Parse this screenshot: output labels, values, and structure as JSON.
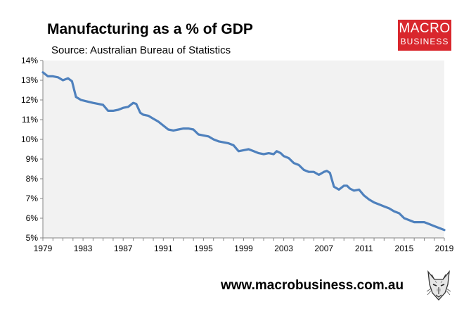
{
  "header": {
    "title": "Manufacturing as a % of GDP",
    "subtitle": "Source: Australian Bureau of Statistics"
  },
  "logo": {
    "line1": "MACRO",
    "line2": "BUSINESS"
  },
  "footer": {
    "url": "www.macrobusiness.com.au",
    "mascot_icon": "fox-mascot-icon"
  },
  "colors": {
    "line": "#4f81bd",
    "plot_bg": "#f2f2f2",
    "logo_bg": "#d9272d"
  },
  "chart_data": {
    "type": "line",
    "title": "Manufacturing as a % of GDP",
    "xlabel": "",
    "ylabel": "",
    "xlim": [
      1979,
      2019
    ],
    "ylim": [
      5,
      14
    ],
    "grid": false,
    "legend": "none",
    "x_tick_labels": [
      "1979",
      "1983",
      "1987",
      "1991",
      "1995",
      "1999",
      "2003",
      "2007",
      "2011",
      "2015",
      "2019"
    ],
    "y_tick_labels": [
      "5%",
      "6%",
      "7%",
      "8%",
      "9%",
      "10%",
      "11%",
      "12%",
      "13%",
      "14%"
    ],
    "series": [
      {
        "name": "Manufacturing as a % of GDP",
        "x": [
          1979.0,
          1979.5,
          1980.0,
          1980.5,
          1981.0,
          1981.5,
          1981.9,
          1982.3,
          1982.8,
          1983.2,
          1983.6,
          1984.0,
          1984.5,
          1985.0,
          1985.5,
          1986.0,
          1986.5,
          1987.0,
          1987.5,
          1988.0,
          1988.3,
          1988.7,
          1989.0,
          1989.5,
          1990.0,
          1990.5,
          1991.0,
          1991.5,
          1992.0,
          1992.5,
          1993.0,
          1993.5,
          1994.0,
          1994.5,
          1995.0,
          1995.5,
          1996.0,
          1996.5,
          1997.0,
          1997.5,
          1998.0,
          1998.5,
          1999.0,
          1999.5,
          2000.0,
          2000.5,
          2001.0,
          2001.5,
          2002.0,
          2002.3,
          2002.7,
          2003.0,
          2003.5,
          2004.0,
          2004.5,
          2005.0,
          2005.5,
          2006.0,
          2006.5,
          2007.0,
          2007.3,
          2007.6,
          2008.0,
          2008.5,
          2009.0,
          2009.3,
          2009.6,
          2010.0,
          2010.5,
          2011.0,
          2011.5,
          2012.0,
          2012.5,
          2013.0,
          2013.5,
          2014.0,
          2014.5,
          2015.0,
          2015.5,
          2016.0,
          2016.5,
          2017.0,
          2017.5,
          2018.0,
          2018.5,
          2019.0
        ],
        "values": [
          13.4,
          13.2,
          13.2,
          13.15,
          13.0,
          13.1,
          12.95,
          12.15,
          12.0,
          11.95,
          11.9,
          11.85,
          11.8,
          11.75,
          11.45,
          11.45,
          11.5,
          11.6,
          11.65,
          11.85,
          11.8,
          11.35,
          11.25,
          11.2,
          11.05,
          10.9,
          10.7,
          10.5,
          10.45,
          10.5,
          10.55,
          10.55,
          10.5,
          10.25,
          10.2,
          10.15,
          10.0,
          9.9,
          9.85,
          9.8,
          9.7,
          9.4,
          9.45,
          9.5,
          9.4,
          9.3,
          9.25,
          9.3,
          9.25,
          9.4,
          9.3,
          9.15,
          9.05,
          8.8,
          8.7,
          8.45,
          8.35,
          8.35,
          8.2,
          8.35,
          8.4,
          8.3,
          7.6,
          7.45,
          7.65,
          7.65,
          7.5,
          7.4,
          7.45,
          7.15,
          6.95,
          6.8,
          6.7,
          6.6,
          6.5,
          6.35,
          6.25,
          6.0,
          5.9,
          5.8,
          5.8,
          5.8,
          5.7,
          5.6,
          5.5,
          5.4
        ]
      }
    ]
  }
}
